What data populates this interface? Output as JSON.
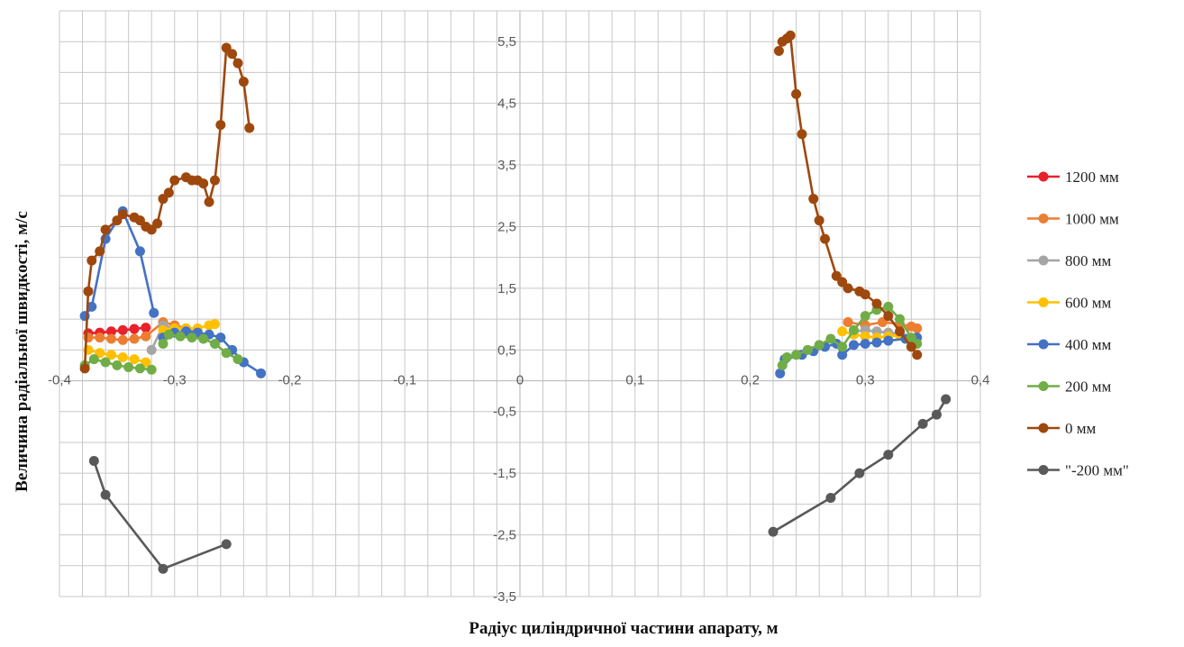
{
  "chart_data": {
    "type": "scatter",
    "xlabel": "Радіус циліндричної частини апарату, м",
    "ylabel": "Величина радіальної швидкості, м/с",
    "xlim": [
      -0.4,
      0.4
    ],
    "ylim": [
      -3.5,
      6
    ],
    "x_ticks": [
      -0.4,
      -0.3,
      -0.2,
      -0.1,
      0,
      0.1,
      0.2,
      0.3,
      0.4
    ],
    "x_tick_labels": [
      "-0,4",
      "-0,3",
      "-0,2",
      "-0,1",
      "0",
      "0,1",
      "0,2",
      "0,3",
      "0,4"
    ],
    "y_ticks": [
      -3.5,
      -2.5,
      -1.5,
      -0.5,
      0.5,
      1.5,
      2.5,
      3.5,
      4.5,
      5.5
    ],
    "y_tick_labels": [
      "-3,5",
      "-2,5",
      "-1,5",
      "-0,5",
      "0,5",
      "1,5",
      "2,5",
      "3,5",
      "4,5",
      "5,5"
    ],
    "grid": true,
    "legend_position": "right",
    "series": [
      {
        "name": "1200 мм",
        "color": "#e8212b",
        "segments": [
          [
            [
              -0.375,
              0.77
            ],
            [
              -0.365,
              0.78
            ],
            [
              -0.355,
              0.8
            ],
            [
              -0.345,
              0.82
            ],
            [
              -0.335,
              0.84
            ],
            [
              -0.325,
              0.86
            ]
          ]
        ]
      },
      {
        "name": "1000 мм",
        "color": "#ed7d31",
        "segments": [
          [
            [
              -0.375,
              0.7
            ],
            [
              -0.365,
              0.7
            ],
            [
              -0.355,
              0.68
            ],
            [
              -0.345,
              0.66
            ],
            [
              -0.335,
              0.68
            ],
            [
              -0.325,
              0.72
            ],
            [
              -0.31,
              0.95
            ],
            [
              -0.3,
              0.9
            ],
            [
              -0.29,
              0.85
            ]
          ],
          [
            [
              0.285,
              0.95
            ],
            [
              0.3,
              0.9
            ],
            [
              0.315,
              0.95
            ],
            [
              0.33,
              0.92
            ],
            [
              0.34,
              0.88
            ],
            [
              0.345,
              0.85
            ]
          ]
        ]
      },
      {
        "name": "800 мм",
        "color": "#a5a5a5",
        "segments": [
          [
            [
              -0.32,
              0.5
            ],
            [
              -0.31,
              0.9
            ],
            [
              -0.3,
              0.85
            ],
            [
              -0.29,
              0.82
            ],
            [
              -0.28,
              0.8
            ]
          ],
          [
            [
              0.29,
              0.8
            ],
            [
              0.3,
              0.82
            ],
            [
              0.31,
              0.8
            ],
            [
              0.32,
              0.78
            ],
            [
              0.33,
              0.76
            ]
          ]
        ]
      },
      {
        "name": "600 мм",
        "color": "#ffc000",
        "segments": [
          [
            [
              -0.375,
              0.5
            ],
            [
              -0.365,
              0.45
            ],
            [
              -0.355,
              0.42
            ],
            [
              -0.345,
              0.38
            ],
            [
              -0.335,
              0.35
            ],
            [
              -0.325,
              0.3
            ]
          ],
          [
            [
              -0.31,
              0.82
            ],
            [
              -0.3,
              0.85
            ],
            [
              -0.29,
              0.85
            ],
            [
              -0.28,
              0.85
            ],
            [
              -0.27,
              0.9
            ],
            [
              -0.265,
              0.92
            ]
          ],
          [
            [
              0.28,
              0.8
            ],
            [
              0.29,
              0.75
            ],
            [
              0.3,
              0.72
            ],
            [
              0.31,
              0.7
            ],
            [
              0.32,
              0.72
            ],
            [
              0.33,
              0.74
            ]
          ]
        ]
      },
      {
        "name": "400 мм",
        "color": "#4472c4",
        "segments": [
          [
            [
              -0.378,
              1.05
            ],
            [
              -0.372,
              1.2
            ],
            [
              -0.36,
              2.3
            ],
            [
              -0.345,
              2.75
            ],
            [
              -0.33,
              2.1
            ],
            [
              -0.318,
              1.1
            ]
          ],
          [
            [
              -0.31,
              0.7
            ],
            [
              -0.3,
              0.78
            ],
            [
              -0.29,
              0.8
            ],
            [
              -0.28,
              0.78
            ],
            [
              -0.27,
              0.75
            ],
            [
              -0.26,
              0.7
            ],
            [
              -0.25,
              0.5
            ],
            [
              -0.24,
              0.3
            ],
            [
              -0.225,
              0.12
            ]
          ],
          [
            [
              0.226,
              0.12
            ],
            [
              0.23,
              0.35
            ],
            [
              0.245,
              0.42
            ],
            [
              0.255,
              0.48
            ],
            [
              0.265,
              0.55
            ],
            [
              0.275,
              0.6
            ],
            [
              0.28,
              0.42
            ],
            [
              0.29,
              0.58
            ],
            [
              0.3,
              0.6
            ],
            [
              0.31,
              0.62
            ],
            [
              0.32,
              0.65
            ],
            [
              0.335,
              0.68
            ],
            [
              0.345,
              0.7
            ]
          ]
        ]
      },
      {
        "name": "200 мм",
        "color": "#70ad47",
        "segments": [
          [
            [
              -0.378,
              0.25
            ],
            [
              -0.37,
              0.35
            ],
            [
              -0.36,
              0.3
            ],
            [
              -0.35,
              0.25
            ],
            [
              -0.34,
              0.22
            ],
            [
              -0.33,
              0.2
            ],
            [
              -0.32,
              0.18
            ]
          ],
          [
            [
              -0.31,
              0.6
            ],
            [
              -0.305,
              0.75
            ],
            [
              -0.295,
              0.72
            ],
            [
              -0.285,
              0.7
            ],
            [
              -0.275,
              0.68
            ],
            [
              -0.265,
              0.6
            ],
            [
              -0.255,
              0.45
            ],
            [
              -0.245,
              0.35
            ]
          ],
          [
            [
              0.228,
              0.25
            ],
            [
              0.232,
              0.38
            ],
            [
              0.24,
              0.42
            ],
            [
              0.25,
              0.5
            ],
            [
              0.26,
              0.58
            ],
            [
              0.27,
              0.68
            ],
            [
              0.28,
              0.55
            ],
            [
              0.29,
              0.82
            ],
            [
              0.3,
              1.05
            ],
            [
              0.31,
              1.15
            ],
            [
              0.32,
              1.2
            ],
            [
              0.33,
              1.0
            ],
            [
              0.34,
              0.7
            ],
            [
              0.345,
              0.6
            ]
          ]
        ]
      },
      {
        "name": "0 мм",
        "color": "#9e480e",
        "segments": [
          [
            [
              -0.378,
              0.2
            ],
            [
              -0.375,
              1.45
            ],
            [
              -0.372,
              1.95
            ],
            [
              -0.365,
              2.1
            ],
            [
              -0.36,
              2.45
            ],
            [
              -0.35,
              2.6
            ],
            [
              -0.345,
              2.7
            ],
            [
              -0.335,
              2.65
            ],
            [
              -0.33,
              2.6
            ],
            [
              -0.325,
              2.5
            ],
            [
              -0.32,
              2.45
            ],
            [
              -0.315,
              2.55
            ],
            [
              -0.31,
              2.95
            ],
            [
              -0.305,
              3.05
            ],
            [
              -0.3,
              3.25
            ],
            [
              -0.29,
              3.3
            ],
            [
              -0.285,
              3.25
            ],
            [
              -0.28,
              3.25
            ],
            [
              -0.275,
              3.2
            ],
            [
              -0.27,
              2.9
            ],
            [
              -0.265,
              3.25
            ],
            [
              -0.26,
              4.15
            ],
            [
              -0.255,
              5.4
            ],
            [
              -0.25,
              5.3
            ],
            [
              -0.245,
              5.15
            ],
            [
              -0.24,
              4.85
            ],
            [
              -0.235,
              4.1
            ]
          ],
          [
            [
              0.225,
              5.35
            ],
            [
              0.228,
              5.5
            ],
            [
              0.232,
              5.55
            ],
            [
              0.235,
              5.6
            ],
            [
              0.24,
              4.65
            ],
            [
              0.245,
              4.0
            ],
            [
              0.255,
              2.95
            ],
            [
              0.26,
              2.6
            ],
            [
              0.265,
              2.3
            ],
            [
              0.275,
              1.7
            ],
            [
              0.28,
              1.6
            ],
            [
              0.285,
              1.5
            ],
            [
              0.295,
              1.45
            ],
            [
              0.3,
              1.4
            ],
            [
              0.31,
              1.25
            ],
            [
              0.32,
              1.05
            ],
            [
              0.33,
              0.8
            ],
            [
              0.34,
              0.55
            ],
            [
              0.345,
              0.42
            ]
          ]
        ]
      },
      {
        "name": "\"-200 мм\"",
        "color": "#595959",
        "segments": [
          [
            [
              -0.37,
              -1.3
            ],
            [
              -0.36,
              -1.85
            ],
            [
              -0.31,
              -3.05
            ],
            [
              -0.255,
              -2.65
            ]
          ],
          [
            [
              0.22,
              -2.45
            ],
            [
              0.27,
              -1.9
            ],
            [
              0.295,
              -1.5
            ],
            [
              0.32,
              -1.2
            ],
            [
              0.35,
              -0.7
            ],
            [
              0.362,
              -0.55
            ],
            [
              0.37,
              -0.3
            ]
          ]
        ]
      }
    ]
  }
}
